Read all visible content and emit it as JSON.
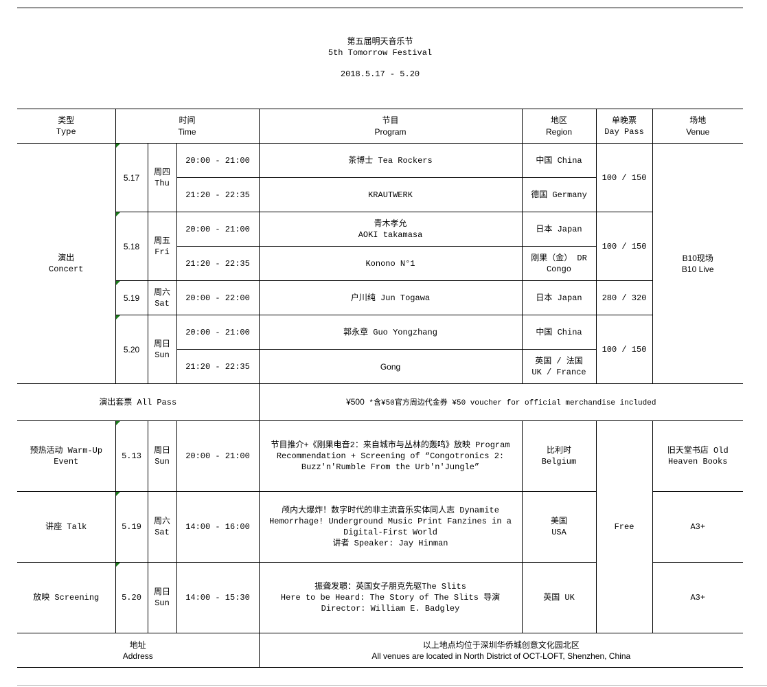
{
  "title_cn": "第五届明天音乐节",
  "title_en": "5th Tomorrow Festival",
  "dates": "2018.5.17 - 5.20",
  "headers": {
    "type_cn": "类型",
    "type_en": "Type",
    "time_cn": "时间",
    "time_en": "Time",
    "program_cn": "节目",
    "program_en": "Program",
    "region_cn": "地区",
    "region_en": "Region",
    "pass_cn": "单晚票",
    "pass_en": "Day Pass",
    "venue_cn": "场地",
    "venue_en": "Venue"
  },
  "concert": {
    "type_cn": "演出",
    "type_en": "Concert",
    "venue_cn": "B10现场",
    "venue_en": "B10 Live",
    "days": [
      {
        "date": "5.17",
        "wd_cn": "周四",
        "wd_en": "Thu",
        "price": "100 / 150"
      },
      {
        "date": "5.18",
        "wd_cn": "周五",
        "wd_en": "Fri",
        "price": "100 / 150"
      },
      {
        "date": "5.19",
        "wd_cn": "周六",
        "wd_en": "Sat",
        "price": "280 / 320"
      },
      {
        "date": "5.20",
        "wd_cn": "周日",
        "wd_en": "Sun",
        "price": "100 / 150"
      }
    ],
    "shows": [
      {
        "time": "20:00 - 21:00",
        "program": "茶博士 Tea Rockers",
        "region": "中国 China"
      },
      {
        "time": "21:20 - 22:35",
        "program": "KRAUTWERK",
        "region": "德国 Germany"
      },
      {
        "time": "20:00 - 21:00",
        "program": "青木孝允",
        "program2": "AOKI takamasa",
        "region": "日本 Japan"
      },
      {
        "time": "21:20 - 22:35",
        "program": "Konono N°1",
        "region": "刚果（金） DR",
        "region2": "Congo"
      },
      {
        "time": "20:00 - 22:00",
        "program": "户川纯 Jun Togawa",
        "region": "日本 Japan"
      },
      {
        "time": "20:00 - 21:00",
        "program": "郭永章 Guo Yongzhang",
        "region": "中国 China"
      },
      {
        "time": "21:20 - 22:35",
        "program": "Gong",
        "region": "英国 / 法国",
        "region2": "UK / France"
      }
    ]
  },
  "all_pass": {
    "label": "演出套票 All Pass",
    "price": "¥500",
    "note": "*含¥50官方周边代金券 ¥50 voucher for official merchandise included"
  },
  "events": [
    {
      "type": "预热活动 Warm-Up Event",
      "date": "5.13",
      "wd_cn": "周日",
      "wd_en": "Sun",
      "time": "20:00 - 21:00",
      "program": "节目推介+《刚果电音2：来自城市与丛林的轰鸣》放映 Program Recommendation + Screening of “Congotronics 2: Buzz'n'Rumble From the Urb'n'Jungle”",
      "region_cn": "比利时",
      "region_en": "Belgium",
      "venue": "旧天堂书店 Old Heaven Books"
    },
    {
      "type": "讲座 Talk",
      "date": "5.19",
      "wd_cn": "周六",
      "wd_en": "Sat",
      "time": "14:00 - 16:00",
      "program": "颅内大爆炸！数字时代的非主流音乐实体同人志 Dynamite Hemorrhage! Underground Music Print Fanzines in a Digital-First World",
      "program2": "讲者 Speaker: Jay Hinman",
      "region_cn": "美国",
      "region_en": "USA",
      "venue": "A3+"
    },
    {
      "type": "放映 Screening",
      "date": "5.20",
      "wd_cn": "周日",
      "wd_en": "Sun",
      "time": "14:00 - 15:30",
      "program": "振聋发聩：英国女子朋克先驱The Slits",
      "program2": "Here to be Heard: The Story of The Slits 导演 Director:  William E. Badgley",
      "region_cn": "英国 UK",
      "venue": "A3+"
    }
  ],
  "event_price": "Free",
  "address": {
    "label_cn": "地址",
    "label_en": "Address",
    "cn": "以上地点均位于深圳华侨城创意文化园北区",
    "en": "All venues are located in North District of OCT-LOFT, Shenzhen, China"
  }
}
